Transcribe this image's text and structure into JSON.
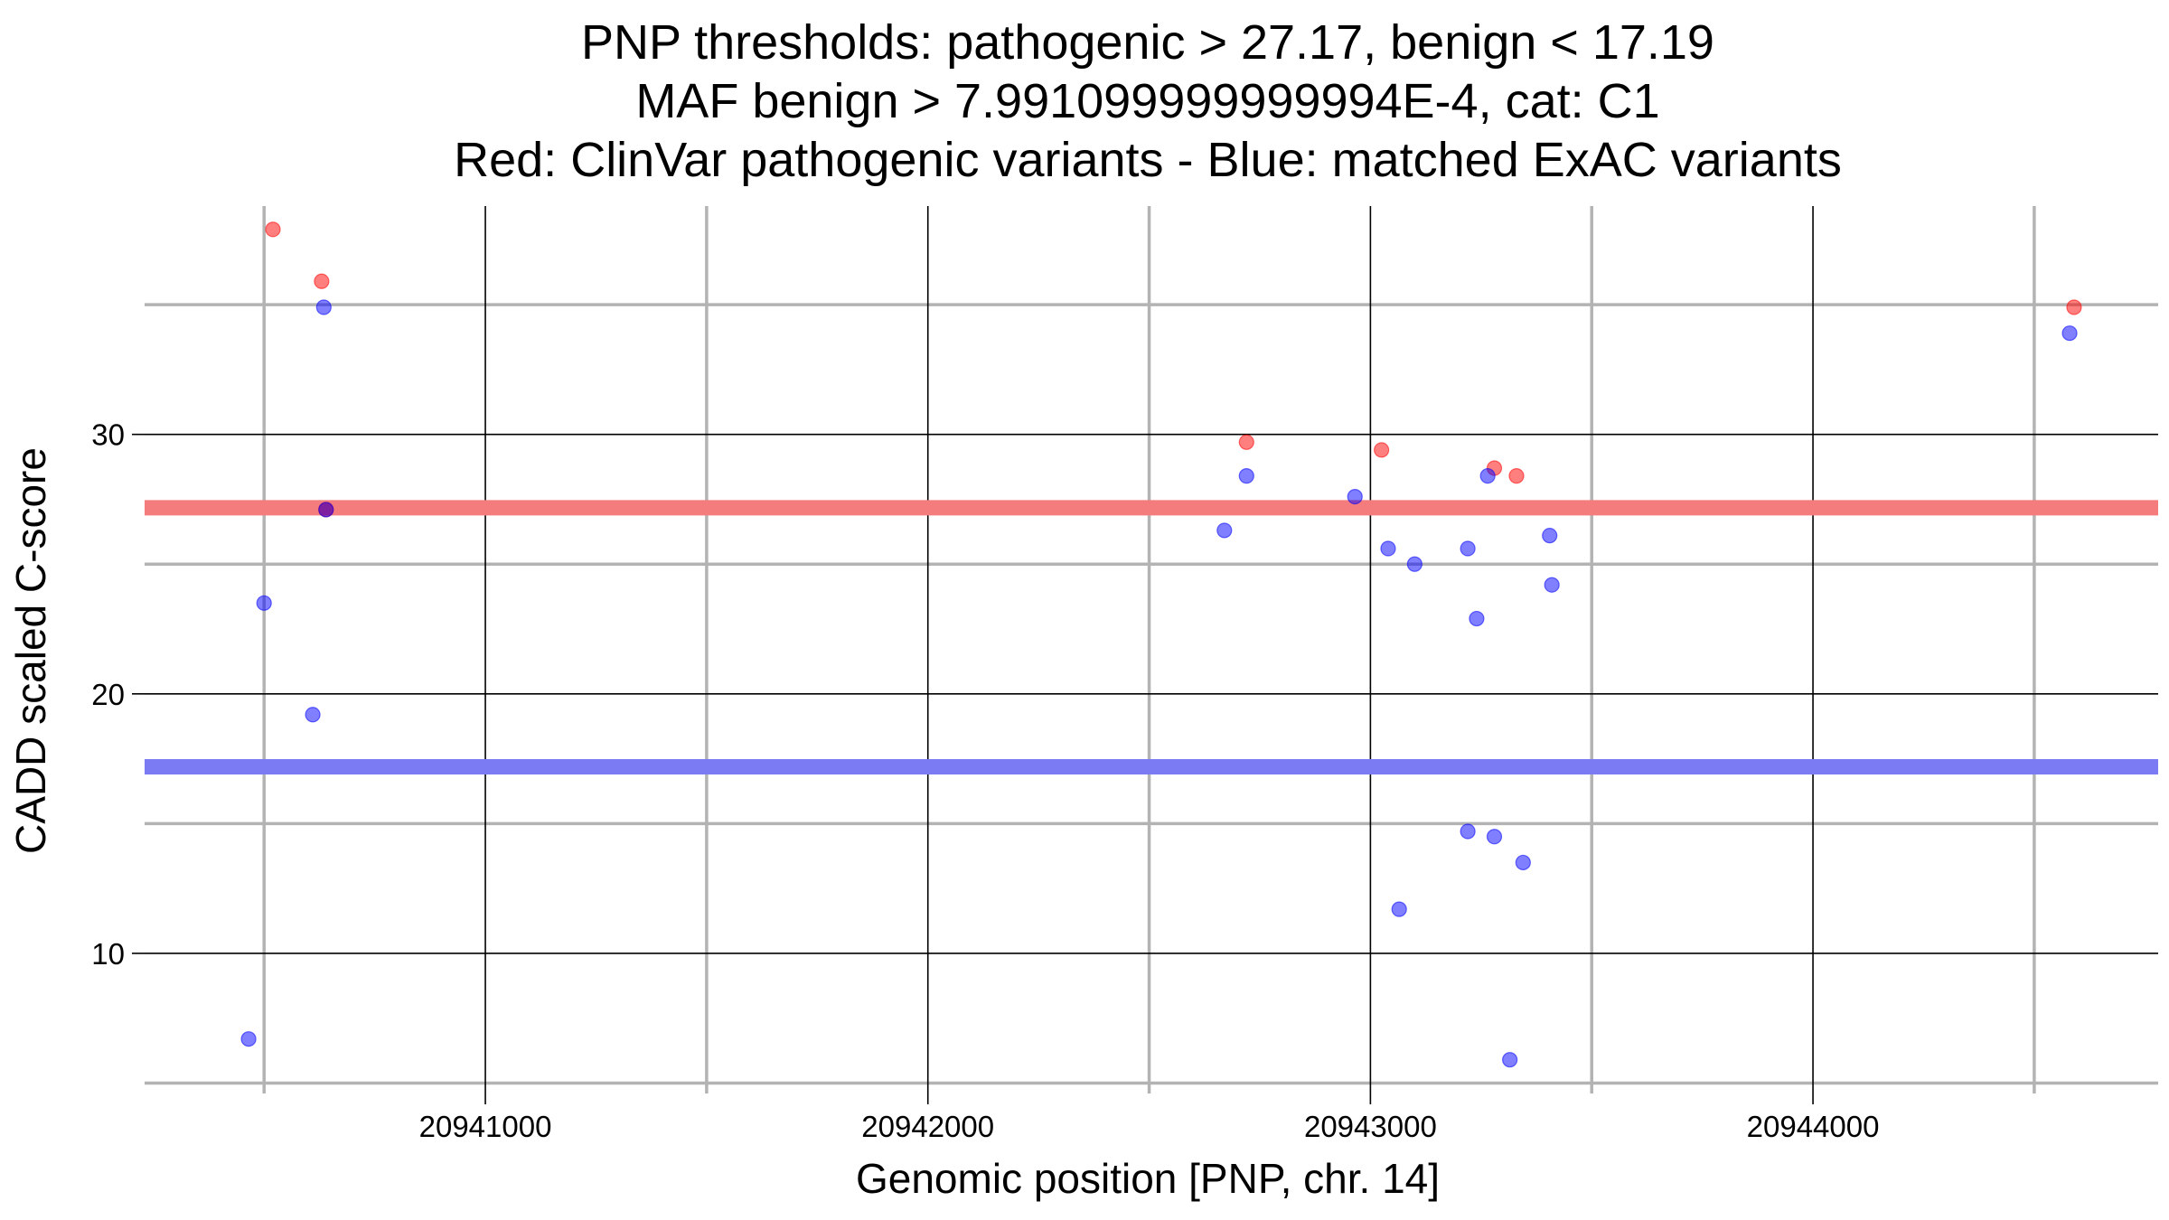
{
  "chart_data": {
    "type": "scatter",
    "title_lines": [
      "PNP thresholds: pathogenic > 27.17, benign < 17.19",
      "MAF benign > 7.991099999999994E-4, cat: C1",
      "Red: ClinVar pathogenic variants - Blue: matched ExAC variants"
    ],
    "xlabel": "Genomic position [PNP, chr. 14]",
    "ylabel": "CADD scaled C-score",
    "xlim": [
      20940230,
      20944780
    ],
    "ylim": [
      4.6,
      38.8
    ],
    "x_major_ticks": [
      20941000,
      20942000,
      20943000,
      20944000
    ],
    "x_tick_labels": [
      "20941000",
      "20942000",
      "20943000",
      "20944000"
    ],
    "x_minor_ticks": [
      20940500,
      20941500,
      20942500,
      20943500,
      20944500
    ],
    "y_major_ticks": [
      10,
      20,
      30
    ],
    "y_tick_labels": [
      "10",
      "20",
      "30"
    ],
    "y_minor_ticks": [
      5,
      15,
      25,
      35
    ],
    "grid": true,
    "colors": {
      "pathogenic": "#ff0000",
      "benign": "#0000ff",
      "pathogenic_line": "#f47c7c",
      "benign_line": "#7b7bf4",
      "major_grid": "#000000",
      "minor_grid": "#b3b3b3"
    },
    "thresholds": [
      {
        "value": 27.17,
        "series": "pathogenic"
      },
      {
        "value": 17.19,
        "series": "benign"
      }
    ],
    "series": [
      {
        "key": "pathogenic",
        "points": [
          [
            20940520,
            37.9
          ],
          [
            20940630,
            35.9
          ],
          [
            20940640,
            27.1
          ],
          [
            20942720,
            29.7
          ],
          [
            20943025,
            29.4
          ],
          [
            20943280,
            28.7
          ],
          [
            20943330,
            28.4
          ],
          [
            20944590,
            34.9
          ]
        ]
      },
      {
        "key": "benign",
        "points": [
          [
            20940465,
            6.7
          ],
          [
            20940500,
            23.5
          ],
          [
            20940610,
            19.2
          ],
          [
            20940635,
            34.9
          ],
          [
            20940640,
            27.1
          ],
          [
            20942670,
            26.3
          ],
          [
            20942720,
            28.4
          ],
          [
            20942965,
            27.6
          ],
          [
            20943040,
            25.6
          ],
          [
            20943065,
            11.7
          ],
          [
            20943100,
            25.0
          ],
          [
            20943220,
            25.6
          ],
          [
            20943220,
            14.7
          ],
          [
            20943240,
            22.9
          ],
          [
            20943265,
            28.4
          ],
          [
            20943280,
            14.5
          ],
          [
            20943315,
            5.9
          ],
          [
            20943345,
            13.5
          ],
          [
            20943405,
            26.1
          ],
          [
            20943410,
            24.2
          ],
          [
            20944580,
            33.9
          ]
        ]
      }
    ]
  }
}
